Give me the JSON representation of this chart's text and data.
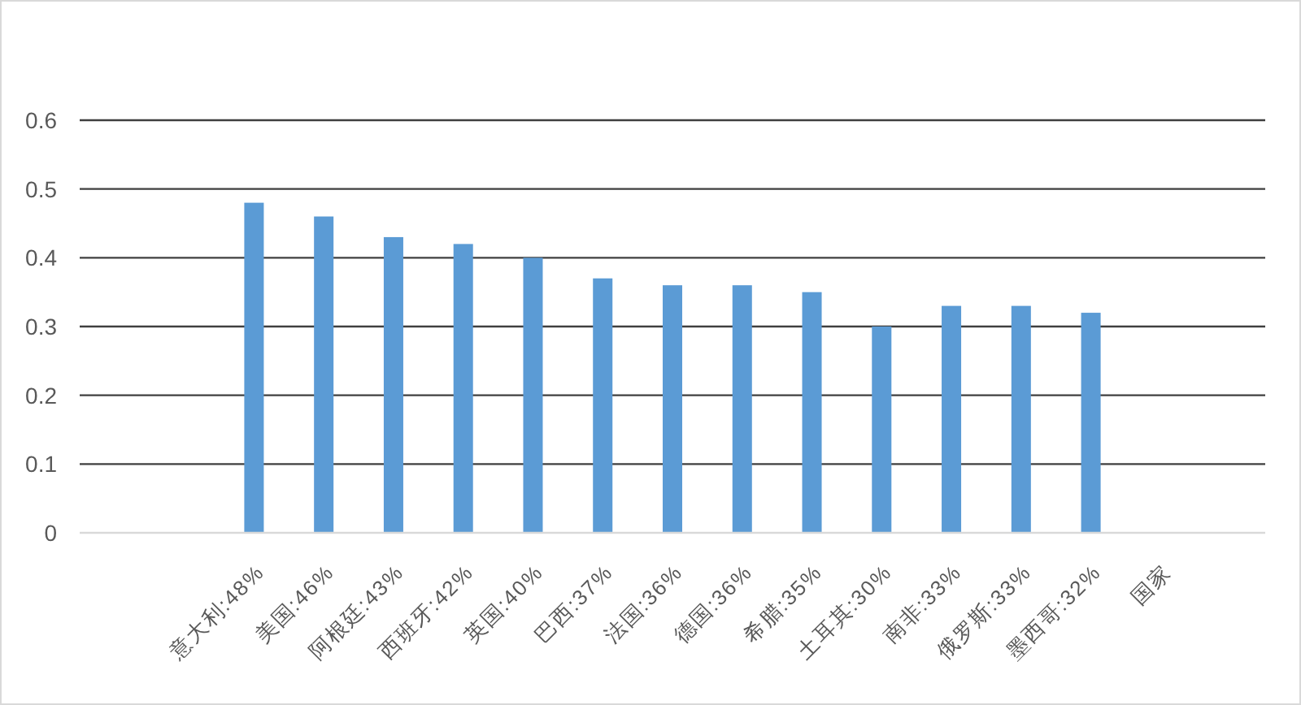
{
  "chart_data": {
    "type": "bar",
    "categories": [
      null,
      null,
      "意大利:48%",
      "美国:46%",
      "阿根廷:43%",
      "西班牙:42%",
      "英国:40%",
      "巴西:37%",
      "法国:36%",
      "德国:36%",
      "希腊:35%",
      "土耳其:30%",
      "南非:33%",
      "俄罗斯:33%",
      "墨西哥:32%",
      "国家",
      null
    ],
    "values": [
      null,
      null,
      0.48,
      0.46,
      0.43,
      0.42,
      0.4,
      0.37,
      0.36,
      0.36,
      0.35,
      0.3,
      0.33,
      0.33,
      0.32,
      null,
      null
    ],
    "color": "#5b9bd5",
    "ylim": [
      0,
      0.6
    ],
    "yticks": [
      0,
      0.1,
      0.2,
      0.3,
      0.4,
      0.5,
      0.6
    ],
    "grid": "y"
  }
}
